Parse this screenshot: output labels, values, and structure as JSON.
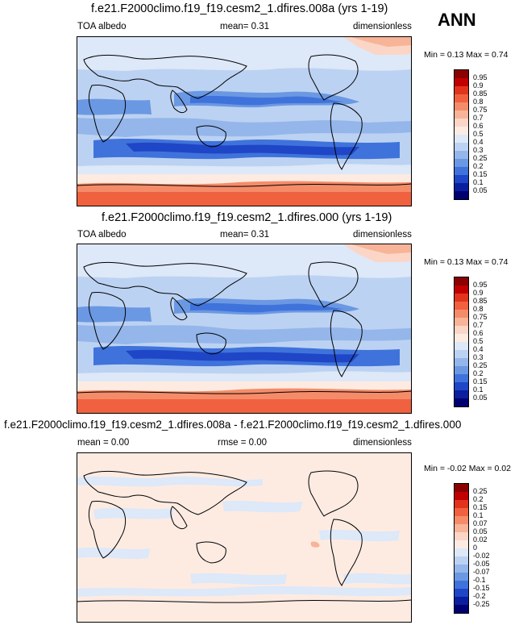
{
  "season": "ANN",
  "panels": [
    {
      "title": "f.e21.F2000climo.f19_f19.cesm2_1.dfires.008a (yrs 1-19)",
      "left": "TOA albedo",
      "mid": "mean=   0.31",
      "right": "dimensionless",
      "minmax": "Min =   0.13 Max =   0.74",
      "levels": [
        "0.95",
        "0.9",
        "0.85",
        "0.8",
        "0.75",
        "0.7",
        "0.6",
        "0.5",
        "0.4",
        "0.3",
        "0.25",
        "0.2",
        "0.15",
        "0.1",
        "0.05"
      ],
      "colors": [
        "#8b0000",
        "#c00000",
        "#e2341d",
        "#f0613f",
        "#f58c69",
        "#f8b498",
        "#fbd6c6",
        "#fdebe2",
        "#dde8f8",
        "#bcd2f2",
        "#94b6ea",
        "#6b98e2",
        "#3f73db",
        "#1f46c6",
        "#0a1f9e",
        "#000070"
      ]
    },
    {
      "title": "f.e21.F2000climo.f19_f19.cesm2_1.dfires.000 (yrs 1-19)",
      "left": "TOA albedo",
      "mid": "mean=   0.31",
      "right": "dimensionless",
      "minmax": "Min =   0.13 Max =   0.74",
      "levels": [
        "0.95",
        "0.9",
        "0.85",
        "0.8",
        "0.75",
        "0.7",
        "0.6",
        "0.5",
        "0.4",
        "0.3",
        "0.25",
        "0.2",
        "0.15",
        "0.1",
        "0.05"
      ],
      "colors": [
        "#8b0000",
        "#c00000",
        "#e2341d",
        "#f0613f",
        "#f58c69",
        "#f8b498",
        "#fbd6c6",
        "#fdebe2",
        "#dde8f8",
        "#bcd2f2",
        "#94b6ea",
        "#6b98e2",
        "#3f73db",
        "#1f46c6",
        "#0a1f9e",
        "#000070"
      ]
    },
    {
      "title": "f.e21.F2000climo.f19_f19.cesm2_1.dfires.008a - f.e21.F2000climo.f19_f19.cesm2_1.dfires.000",
      "left": "mean =   0.00",
      "mid": "rmse =   0.00",
      "right": "dimensionless",
      "minmax": "Min =  -0.02 Max =   0.02",
      "levels": [
        "0.25",
        "0.2",
        "0.15",
        "0.1",
        "0.07",
        "0.05",
        "0.02",
        "0",
        "-0.02",
        "-0.05",
        "-0.07",
        "-0.1",
        "-0.15",
        "-0.2",
        "-0.25"
      ],
      "colors": [
        "#8b0000",
        "#c00000",
        "#e2341d",
        "#f0613f",
        "#f58c69",
        "#f8b498",
        "#fbd6c6",
        "#fdebe2",
        "#dde8f8",
        "#bcd2f2",
        "#94b6ea",
        "#6b98e2",
        "#3f73db",
        "#1f46c6",
        "#0a1f9e",
        "#000070"
      ]
    }
  ]
}
